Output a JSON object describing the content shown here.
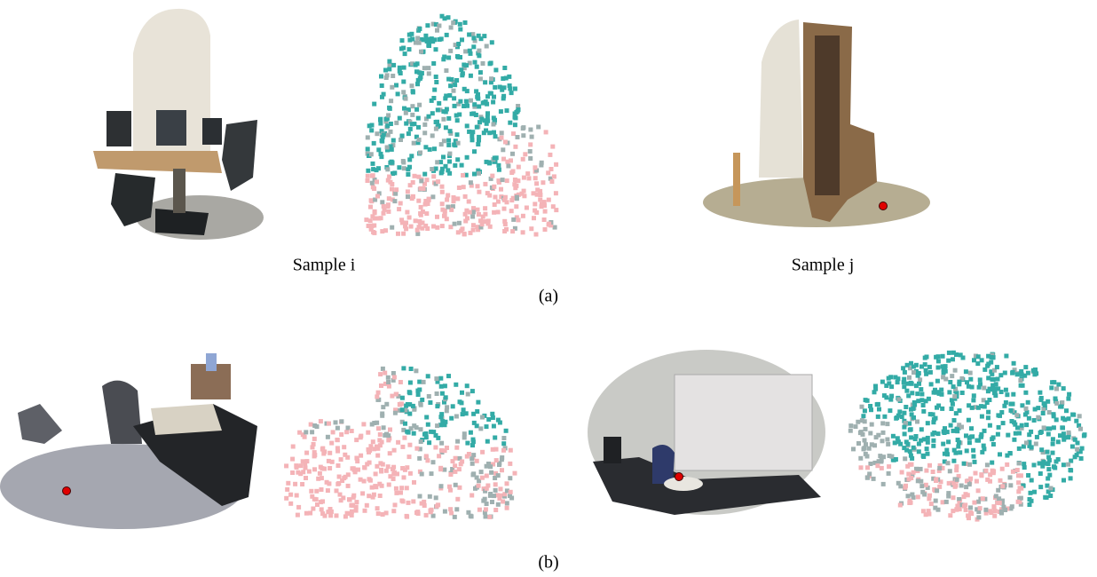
{
  "figure": {
    "panel_a": {
      "label_left": "Sample i",
      "label_right": "Sample j",
      "caption": "(a)"
    },
    "panel_b": {
      "caption": "(b)"
    }
  }
}
